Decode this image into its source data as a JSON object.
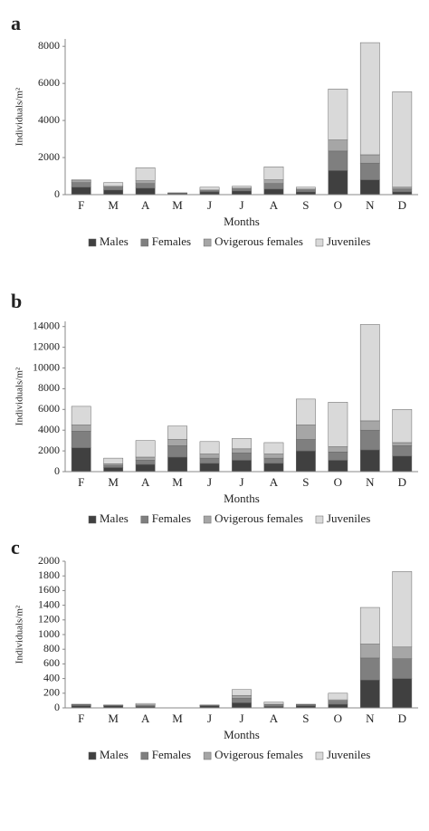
{
  "chart_data": [
    {
      "type": "bar",
      "panel": "a",
      "xlabel": "Months",
      "ylabel": "Individuals/m²",
      "categories": [
        "F",
        "M",
        "A",
        "M",
        "J",
        "J",
        "A",
        "S",
        "O",
        "N",
        "D"
      ],
      "ylim": [
        0,
        8400
      ],
      "yticks": [
        0,
        2000,
        4000,
        6000,
        8000
      ],
      "stacked": true,
      "series": [
        {
          "name": "Males",
          "color": "#404040",
          "values": [
            400,
            250,
            350,
            50,
            150,
            200,
            300,
            150,
            1300,
            800,
            150
          ]
        },
        {
          "name": "Females",
          "color": "#7f7f7f",
          "values": [
            250,
            150,
            250,
            20,
            50,
            100,
            300,
            100,
            1050,
            900,
            150
          ]
        },
        {
          "name": "Ovigerous females",
          "color": "#a6a6a6",
          "values": [
            100,
            50,
            150,
            10,
            50,
            50,
            200,
            50,
            600,
            450,
            100
          ]
        },
        {
          "name": "Juveniles",
          "color": "#d9d9d9",
          "values": [
            50,
            200,
            700,
            20,
            150,
            100,
            700,
            100,
            2750,
            6050,
            5150
          ]
        }
      ]
    },
    {
      "type": "bar",
      "panel": "b",
      "xlabel": "Months",
      "ylabel": "Individuals/m²",
      "categories": [
        "F",
        "M",
        "A",
        "M",
        "J",
        "J",
        "A",
        "S",
        "O",
        "N",
        "D"
      ],
      "ylim": [
        0,
        14500
      ],
      "yticks": [
        0,
        2000,
        4000,
        6000,
        8000,
        10000,
        12000,
        14000
      ],
      "stacked": true,
      "series": [
        {
          "name": "Males",
          "color": "#404040",
          "values": [
            2300,
            400,
            700,
            1400,
            800,
            1100,
            800,
            2000,
            1100,
            2100,
            1500
          ]
        },
        {
          "name": "Females",
          "color": "#7f7f7f",
          "values": [
            1600,
            200,
            400,
            1100,
            500,
            700,
            500,
            1100,
            800,
            1900,
            1000
          ]
        },
        {
          "name": "Ovigerous females",
          "color": "#a6a6a6",
          "values": [
            600,
            150,
            300,
            600,
            400,
            400,
            400,
            1400,
            500,
            900,
            300
          ]
        },
        {
          "name": "Juveniles",
          "color": "#d9d9d9",
          "values": [
            1800,
            550,
            1600,
            1300,
            1200,
            1000,
            1100,
            2500,
            4300,
            9300,
            3200
          ]
        }
      ]
    },
    {
      "type": "bar",
      "panel": "c",
      "xlabel": "Months",
      "ylabel": "Individuals/m²",
      "categories": [
        "F",
        "M",
        "A",
        "M",
        "J",
        "J",
        "A",
        "S",
        "O",
        "N",
        "D"
      ],
      "ylim": [
        0,
        2000
      ],
      "yticks": [
        0,
        200,
        400,
        600,
        800,
        1000,
        1200,
        1400,
        1600,
        1800,
        2000
      ],
      "stacked": true,
      "series": [
        {
          "name": "Males",
          "color": "#404040",
          "values": [
            30,
            30,
            20,
            0,
            30,
            70,
            20,
            30,
            50,
            380,
            400
          ]
        },
        {
          "name": "Females",
          "color": "#7f7f7f",
          "values": [
            10,
            5,
            10,
            0,
            5,
            60,
            20,
            10,
            40,
            300,
            270
          ]
        },
        {
          "name": "Ovigerous females",
          "color": "#a6a6a6",
          "values": [
            5,
            3,
            10,
            0,
            3,
            40,
            10,
            5,
            20,
            190,
            160
          ]
        },
        {
          "name": "Juveniles",
          "color": "#d9d9d9",
          "values": [
            5,
            2,
            20,
            0,
            2,
            80,
            30,
            5,
            90,
            500,
            1030
          ]
        }
      ]
    }
  ]
}
